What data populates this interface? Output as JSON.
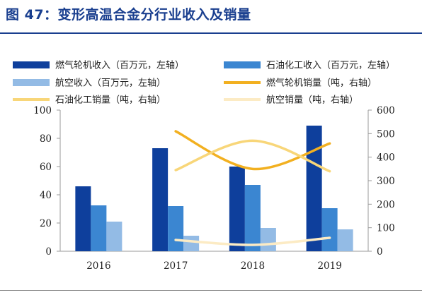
{
  "header": {
    "title": "图 47：变形高温合金分行业收入及销量"
  },
  "chart_data": {
    "type": "bar",
    "categories": [
      "2016",
      "2017",
      "2018",
      "2019"
    ],
    "series": [
      {
        "name": "燃气轮机收入（百万元，左轴）",
        "type": "bar",
        "axis": "left",
        "color": "#0e3f9c",
        "values": [
          46,
          73,
          60,
          89
        ]
      },
      {
        "name": "石油化工收入（百万元，左轴）",
        "type": "bar",
        "axis": "left",
        "color": "#3b86d1",
        "values": [
          32.5,
          32,
          47,
          30.5
        ]
      },
      {
        "name": "航空收入（百万元，左轴）",
        "type": "bar",
        "axis": "left",
        "color": "#93bbe5",
        "values": [
          21,
          11,
          16.5,
          15.5
        ]
      },
      {
        "name": "燃气轮机销量（吨，右轴）",
        "type": "line",
        "axis": "right",
        "color": "#f2b020",
        "values": [
          null,
          510,
          350,
          458
        ]
      },
      {
        "name": "石油化工销量（吨，右轴）",
        "type": "line",
        "axis": "right",
        "color": "#f8d679",
        "values": [
          null,
          345,
          470,
          340
        ]
      },
      {
        "name": "航空销量（吨，右轴）",
        "type": "line",
        "axis": "right",
        "color": "#fcebc4",
        "values": [
          null,
          48,
          27,
          57
        ]
      }
    ],
    "y_left": {
      "min": 0,
      "max": 100,
      "ticks": [
        0,
        20,
        40,
        60,
        80,
        100
      ]
    },
    "y_right": {
      "min": 0,
      "max": 600,
      "ticks": [
        0,
        100,
        200,
        300,
        400,
        500,
        600
      ]
    },
    "grid": false,
    "legend_position": "top"
  }
}
